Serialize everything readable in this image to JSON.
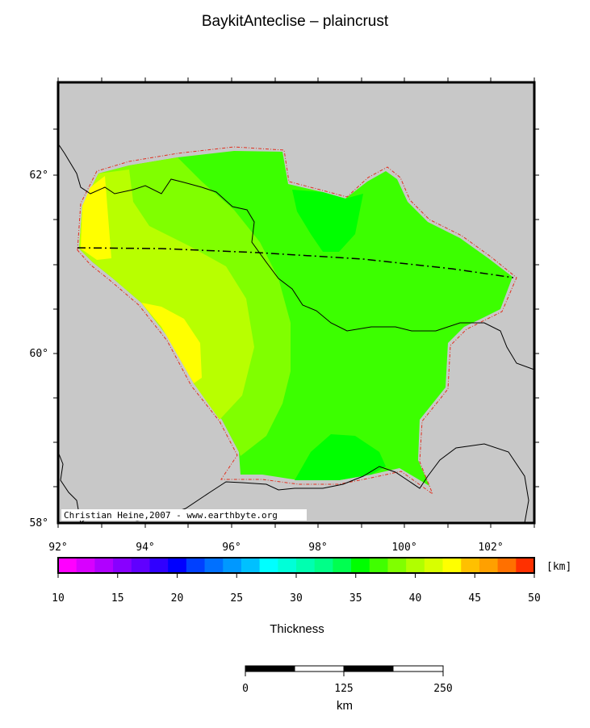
{
  "title": "BaykitAnteclise – plaincrust",
  "map": {
    "lon_ticks": [
      "92°",
      "94°",
      "96°",
      "98°",
      "100°",
      "102°"
    ],
    "lat_ticks": [
      "58°",
      "60°",
      "62°"
    ],
    "credit": "Christian Heine,2007 - www.earthbyte.org"
  },
  "colorbar": {
    "unit": "[km]",
    "ticks": [
      "10",
      "15",
      "20",
      "25",
      "30",
      "35",
      "40",
      "45",
      "50"
    ],
    "label": "Thickness",
    "colors": [
      "#ff00ff",
      "#d800ff",
      "#b000ff",
      "#8800ff",
      "#6000ff",
      "#3000ff",
      "#0000ff",
      "#0040ff",
      "#0070ff",
      "#0098ff",
      "#00c0ff",
      "#00ffff",
      "#00ffd8",
      "#00ffb0",
      "#00ff88",
      "#00ff50",
      "#00ff00",
      "#40ff00",
      "#80ff00",
      "#b0ff00",
      "#d8ff00",
      "#ffff00",
      "#ffc000",
      "#ffa000",
      "#ff7000",
      "#ff3000"
    ]
  },
  "scalebar": {
    "ticks": [
      "0",
      "125",
      "250"
    ],
    "unit": "km"
  }
}
